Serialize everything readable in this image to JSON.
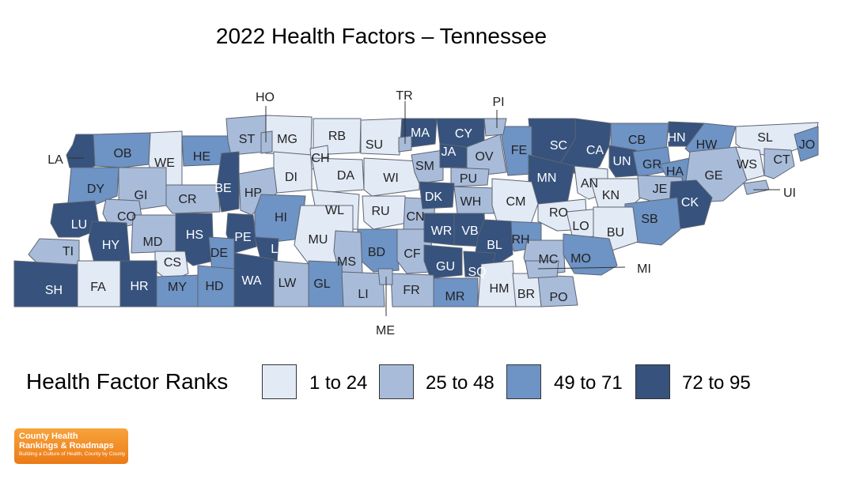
{
  "title": "2022 Health Factors – Tennessee",
  "legend": {
    "title": "Health Factor Ranks",
    "items": [
      {
        "label": "1 to 24",
        "color": "#e2eaf5"
      },
      {
        "label": "25 to 48",
        "color": "#a8bcda"
      },
      {
        "label": "49 to 71",
        "color": "#6e93c5"
      },
      {
        "label": "72 to 95",
        "color": "#36527d"
      }
    ]
  },
  "logo": {
    "line1": "County Health",
    "line2": "Rankings & Roadmaps",
    "tagline": "Building a Culture of Health, County by County"
  },
  "map": {
    "region": "Tennessee",
    "counties": [
      {
        "code": "LA",
        "cls": 4
      },
      {
        "code": "OB",
        "cls": 3
      },
      {
        "code": "WE",
        "cls": 1
      },
      {
        "code": "HE",
        "cls": 3
      },
      {
        "code": "ST",
        "cls": 2
      },
      {
        "code": "MG",
        "cls": 1
      },
      {
        "code": "RB",
        "cls": 1
      },
      {
        "code": "SU",
        "cls": 1
      },
      {
        "code": "MA",
        "cls": 4
      },
      {
        "code": "CY",
        "cls": 4
      },
      {
        "code": "SC",
        "cls": 4
      },
      {
        "code": "CA",
        "cls": 4
      },
      {
        "code": "CB",
        "cls": 3
      },
      {
        "code": "HN",
        "cls": 4
      },
      {
        "code": "HW",
        "cls": 3
      },
      {
        "code": "SL",
        "cls": 1
      },
      {
        "code": "JO",
        "cls": 3
      },
      {
        "code": "DY",
        "cls": 3
      },
      {
        "code": "GI",
        "cls": 2
      },
      {
        "code": "CR",
        "cls": 2
      },
      {
        "code": "BE",
        "cls": 4
      },
      {
        "code": "HP",
        "cls": 2
      },
      {
        "code": "DI",
        "cls": 1
      },
      {
        "code": "CH",
        "cls": 1
      },
      {
        "code": "DA",
        "cls": 1
      },
      {
        "code": "WI",
        "cls": 1
      },
      {
        "code": "SM",
        "cls": 2
      },
      {
        "code": "JA",
        "cls": 4
      },
      {
        "code": "OV",
        "cls": 2
      },
      {
        "code": "FE",
        "cls": 3
      },
      {
        "code": "PU",
        "cls": 2
      },
      {
        "code": "MN",
        "cls": 4
      },
      {
        "code": "UN",
        "cls": 4
      },
      {
        "code": "GR",
        "cls": 3
      },
      {
        "code": "HA",
        "cls": 3
      },
      {
        "code": "GE",
        "cls": 2
      },
      {
        "code": "WS",
        "cls": 1
      },
      {
        "code": "CT",
        "cls": 2
      },
      {
        "code": "LU",
        "cls": 4
      },
      {
        "code": "CO",
        "cls": 2
      },
      {
        "code": "HY",
        "cls": 4
      },
      {
        "code": "MD",
        "cls": 2
      },
      {
        "code": "HS",
        "cls": 4
      },
      {
        "code": "HI",
        "cls": 3
      },
      {
        "code": "WL",
        "cls": 1
      },
      {
        "code": "RU",
        "cls": 1
      },
      {
        "code": "CN",
        "cls": 2
      },
      {
        "code": "DK",
        "cls": 4
      },
      {
        "code": "WH",
        "cls": 2
      },
      {
        "code": "CM",
        "cls": 1
      },
      {
        "code": "AN",
        "cls": 1
      },
      {
        "code": "KN",
        "cls": 1
      },
      {
        "code": "JE",
        "cls": 2
      },
      {
        "code": "CK",
        "cls": 4
      },
      {
        "code": "SB",
        "cls": 3
      },
      {
        "code": "TI",
        "cls": 2
      },
      {
        "code": "CS",
        "cls": 1
      },
      {
        "code": "PE",
        "cls": 4
      },
      {
        "code": "DE",
        "cls": 3
      },
      {
        "code": "LE",
        "cls": 4
      },
      {
        "code": "MU",
        "cls": 1
      },
      {
        "code": "BD",
        "cls": 3
      },
      {
        "code": "CF",
        "cls": 2
      },
      {
        "code": "WR",
        "cls": 4
      },
      {
        "code": "VB",
        "cls": 4
      },
      {
        "code": "RO",
        "cls": 1
      },
      {
        "code": "LO",
        "cls": 1
      },
      {
        "code": "BU",
        "cls": 1
      },
      {
        "code": "RH",
        "cls": 3
      },
      {
        "code": "BL",
        "cls": 4
      },
      {
        "code": "MS",
        "cls": 2
      },
      {
        "code": "GU",
        "cls": 4
      },
      {
        "code": "SQ",
        "cls": 4
      },
      {
        "code": "MC",
        "cls": 2
      },
      {
        "code": "MO",
        "cls": 3
      },
      {
        "code": "SH",
        "cls": 4
      },
      {
        "code": "FA",
        "cls": 1
      },
      {
        "code": "HR",
        "cls": 4
      },
      {
        "code": "MY",
        "cls": 3
      },
      {
        "code": "HD",
        "cls": 3
      },
      {
        "code": "WA",
        "cls": 4
      },
      {
        "code": "LW",
        "cls": 2
      },
      {
        "code": "GL",
        "cls": 3
      },
      {
        "code": "LI",
        "cls": 2
      },
      {
        "code": "FR",
        "cls": 2
      },
      {
        "code": "MR",
        "cls": 3
      },
      {
        "code": "HM",
        "cls": 1
      },
      {
        "code": "BR",
        "cls": 1
      },
      {
        "code": "PO",
        "cls": 2
      }
    ],
    "callouts": [
      {
        "code": "HO",
        "cls": 2
      },
      {
        "code": "TR",
        "cls": 2
      },
      {
        "code": "PI",
        "cls": 2
      },
      {
        "code": "UI",
        "cls": 2
      },
      {
        "code": "MI",
        "cls": 2
      },
      {
        "code": "ME",
        "cls": 2
      }
    ]
  }
}
